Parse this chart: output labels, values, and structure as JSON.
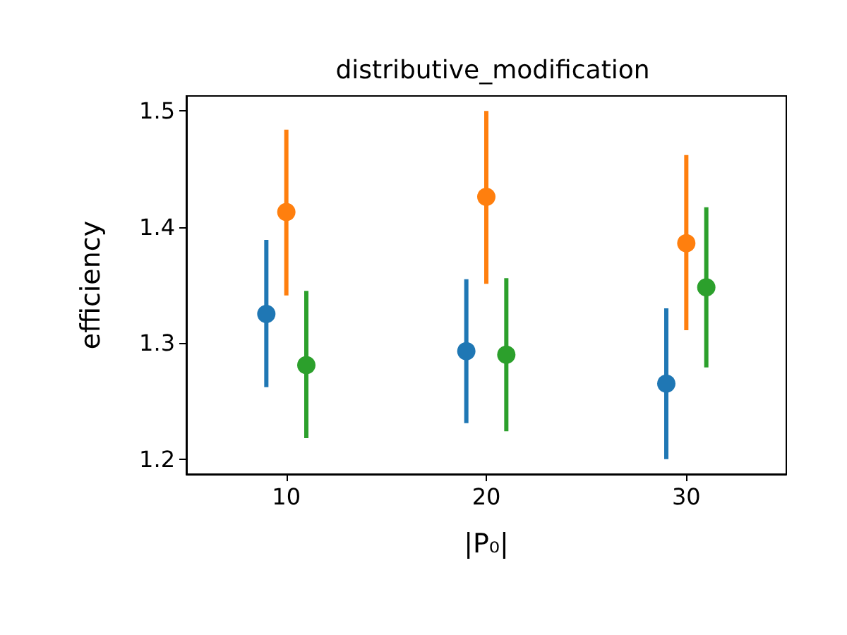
{
  "chart_data": {
    "type": "scatter",
    "title": "distributive_modification",
    "xlabel": "|P₀|",
    "ylabel": "efficiency",
    "xlim": [
      5,
      35
    ],
    "xticks": [
      10,
      20,
      30
    ],
    "ylim": [
      1.187,
      1.513
    ],
    "yticks": [
      1.2,
      1.3,
      1.4,
      1.5
    ],
    "marker": "circle",
    "series": [
      {
        "color": "#1f77b4",
        "x": [
          9,
          19,
          29
        ],
        "values": [
          1.325,
          1.293,
          1.265
        ],
        "errors": [
          [
            1.262,
            1.389
          ],
          [
            1.231,
            1.355
          ],
          [
            1.2,
            1.33
          ]
        ]
      },
      {
        "color": "#ff7f0e",
        "x": [
          10,
          20,
          30
        ],
        "values": [
          1.413,
          1.426,
          1.386
        ],
        "errors": [
          [
            1.341,
            1.484
          ],
          [
            1.351,
            1.5
          ],
          [
            1.311,
            1.462
          ]
        ]
      },
      {
        "color": "#2ca02c",
        "x": [
          11,
          21,
          31
        ],
        "values": [
          1.281,
          1.29,
          1.348
        ],
        "errors": [
          [
            1.218,
            1.345
          ],
          [
            1.224,
            1.356
          ],
          [
            1.279,
            1.417
          ]
        ]
      }
    ]
  }
}
